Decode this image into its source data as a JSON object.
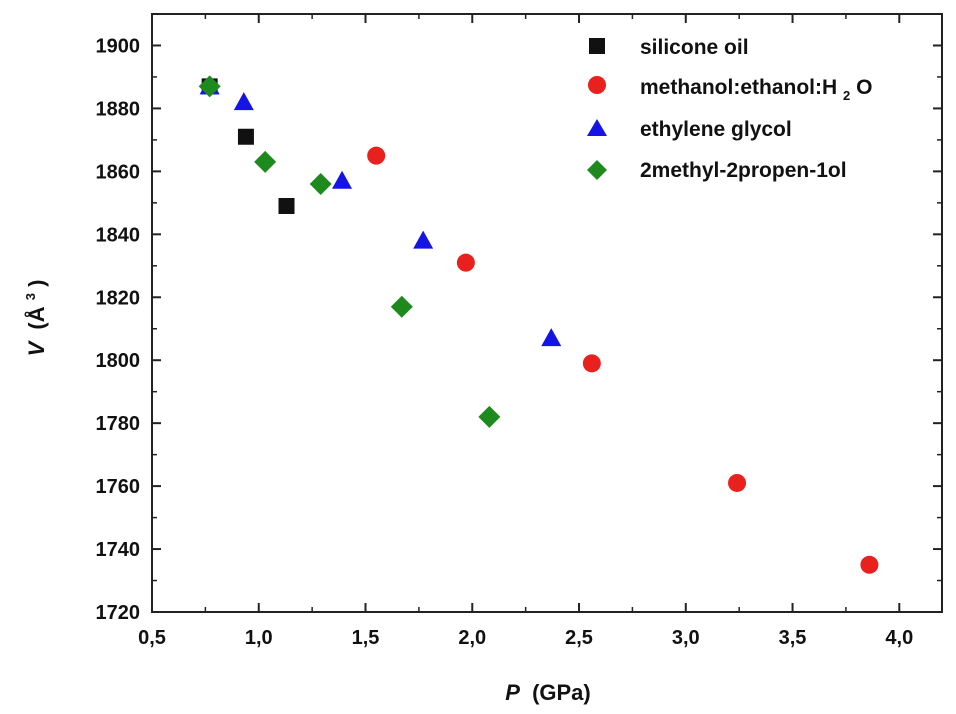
{
  "chart_data": {
    "type": "scatter",
    "xlabel": {
      "symbol": "P",
      "unit": "(GPa)"
    },
    "ylabel": {
      "symbol": "V",
      "unit": "(Å",
      "unit_sup": "3",
      "unit_close": ")"
    },
    "xlim": [
      0.5,
      4.2
    ],
    "ylim": [
      1720,
      1910
    ],
    "x_ticks": [
      0.5,
      1.0,
      1.5,
      2.0,
      2.5,
      3.0,
      3.5,
      4.0
    ],
    "x_tick_labels": [
      "0,5",
      "1,0",
      "1,5",
      "2,0",
      "2,5",
      "3,0",
      "3,5",
      "4,0"
    ],
    "y_ticks": [
      1720,
      1740,
      1760,
      1780,
      1800,
      1820,
      1840,
      1860,
      1880,
      1900
    ],
    "y_tick_labels": [
      "1720",
      "1740",
      "1760",
      "1780",
      "1800",
      "1820",
      "1840",
      "1860",
      "1880",
      "1900"
    ],
    "legend_position": "top-right",
    "series": [
      {
        "name": "silicone oil",
        "marker": "square",
        "color": "#111111",
        "x": [
          0.77,
          0.94,
          1.13
        ],
        "y": [
          1887,
          1871,
          1849
        ]
      },
      {
        "name": "methanol:ethanol:H2O",
        "name_parts": {
          "main": "methanol:ethanol:H",
          "sub": "2",
          "tail": "O"
        },
        "marker": "circle",
        "color": "#e8201e",
        "x": [
          1.55,
          1.97,
          2.56,
          3.24,
          3.86
        ],
        "y": [
          1865,
          1831,
          1799,
          1761,
          1735
        ]
      },
      {
        "name": "ethylene glycol",
        "marker": "triangle",
        "color": "#1414e6",
        "x": [
          0.77,
          0.93,
          1.39,
          1.77,
          2.37
        ],
        "y": [
          1887,
          1882,
          1857,
          1838,
          1807
        ]
      },
      {
        "name": "2methyl-2propen-1ol",
        "marker": "diamond",
        "color": "#1e8a1e",
        "x": [
          0.77,
          1.03,
          1.29,
          1.67,
          2.08
        ],
        "y": [
          1887,
          1863,
          1856,
          1817,
          1782
        ]
      }
    ]
  }
}
